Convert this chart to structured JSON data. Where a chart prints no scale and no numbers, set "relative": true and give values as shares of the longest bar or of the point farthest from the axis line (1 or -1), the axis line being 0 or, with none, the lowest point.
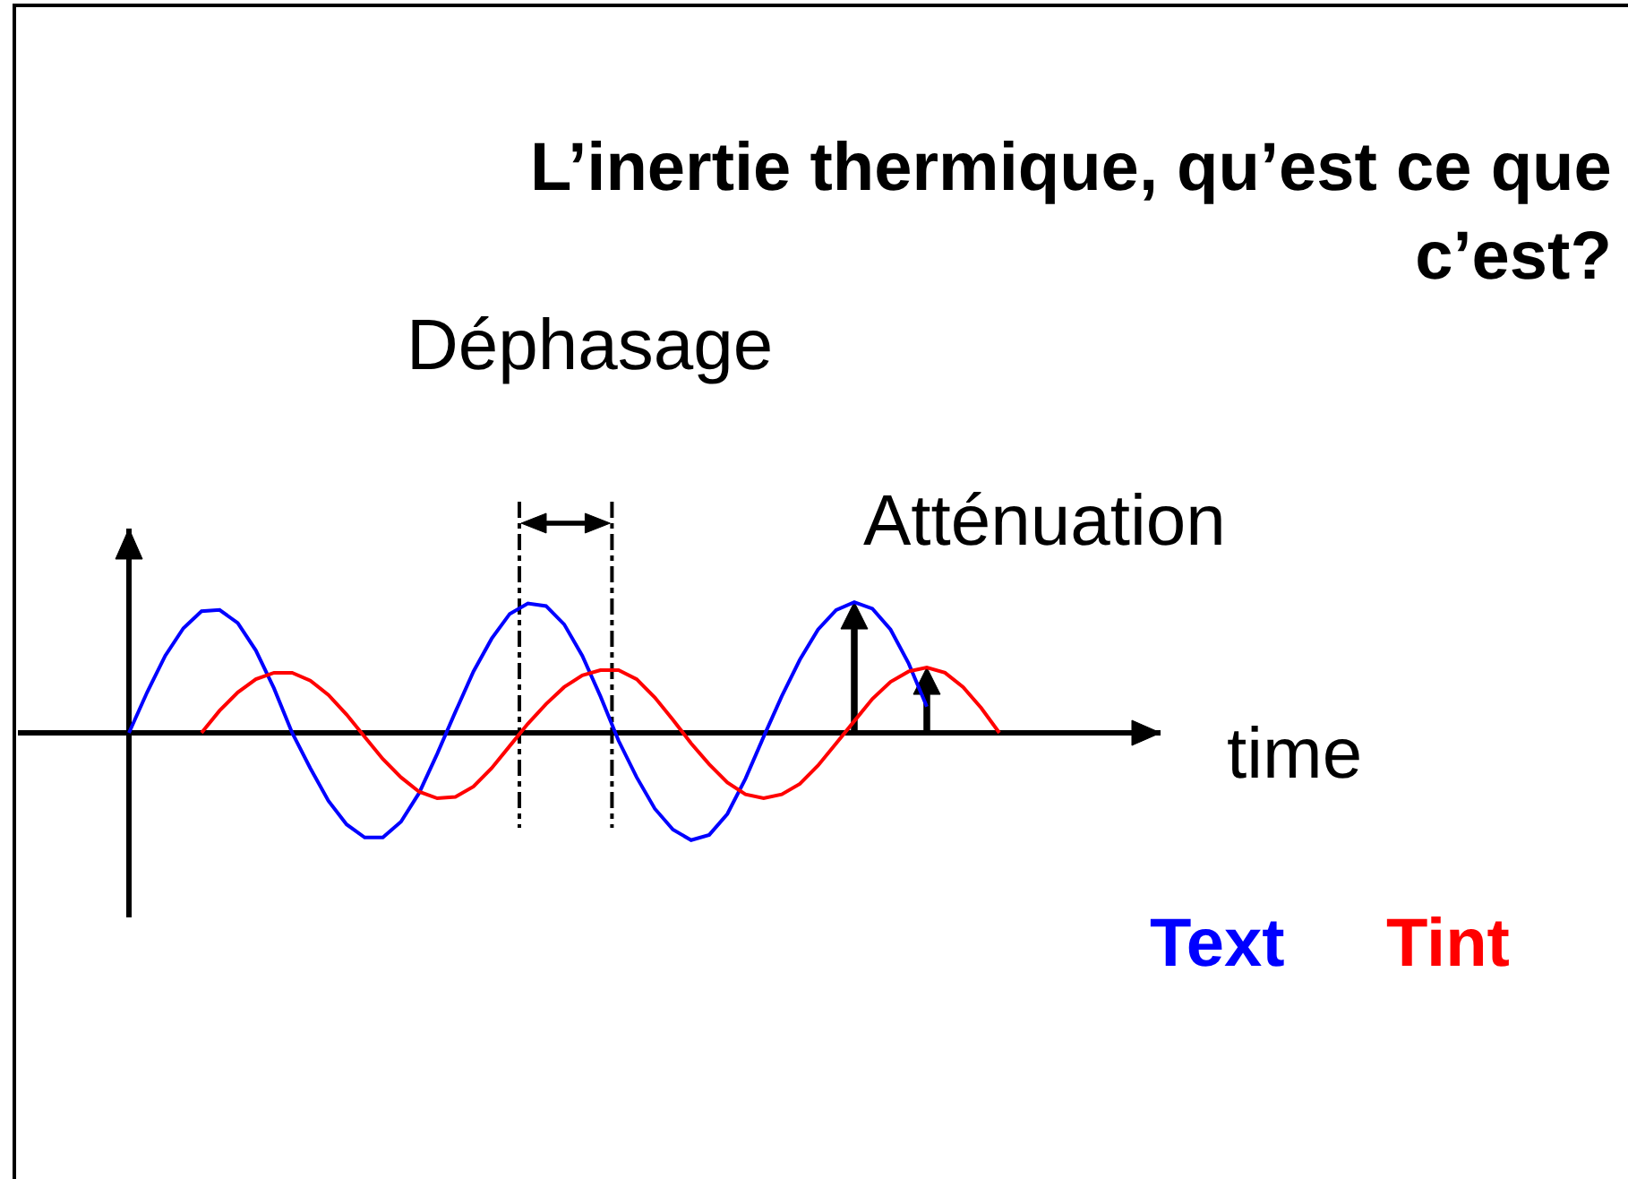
{
  "chart_data": {
    "type": "line",
    "title": "L’inertie thermique, qu’est ce que c’est?",
    "xlabel": "time",
    "annotations": [
      "Déphasage",
      "Atténuation"
    ],
    "relative": true,
    "categories": [
      null,
      null,
      null,
      null,
      null,
      null,
      null,
      null,
      null,
      null,
      null,
      null,
      null,
      null,
      null,
      null,
      null,
      null,
      null,
      null,
      null,
      null,
      null,
      null,
      null,
      null,
      null,
      null,
      null,
      null,
      null,
      null,
      null,
      null,
      null,
      null,
      null,
      null,
      null,
      null,
      null,
      null,
      null,
      null,
      null,
      null,
      null,
      null,
      null
    ],
    "series": [
      {
        "name": "Text",
        "color": "#0000ff",
        "values": [
          0,
          0.31,
          0.59,
          0.8,
          0.93,
          0.94,
          0.84,
          0.63,
          0.34,
          0.0,
          -0.27,
          -0.52,
          -0.7,
          -0.8,
          -0.8,
          -0.68,
          -0.46,
          -0.16,
          0.16,
          0.47,
          0.72,
          0.91,
          0.99,
          0.97,
          0.83,
          0.59,
          0.28,
          -0.06,
          -0.34,
          -0.58,
          -0.74,
          -0.82,
          -0.78,
          -0.62,
          -0.35,
          -0.03,
          0.28,
          0.56,
          0.79,
          0.94,
          1.0,
          0.95,
          0.79,
          0.53,
          0.2,
          null,
          null,
          null,
          null
        ]
      },
      {
        "name": "Tint",
        "color": "#ff0000",
        "values": [
          null,
          null,
          null,
          null,
          0,
          0.17,
          0.31,
          0.41,
          0.46,
          0.46,
          0.4,
          0.29,
          0.14,
          -0.03,
          -0.2,
          -0.34,
          -0.45,
          -0.5,
          -0.49,
          -0.41,
          -0.27,
          -0.1,
          0.07,
          0.22,
          0.35,
          0.44,
          0.48,
          0.48,
          0.41,
          0.27,
          0.1,
          -0.08,
          -0.24,
          -0.38,
          -0.47,
          -0.5,
          -0.47,
          -0.39,
          -0.25,
          -0.08,
          0.09,
          0.26,
          0.39,
          0.47,
          0.5,
          0.46,
          0.35,
          0.19,
          0.0
        ]
      }
    ]
  }
}
